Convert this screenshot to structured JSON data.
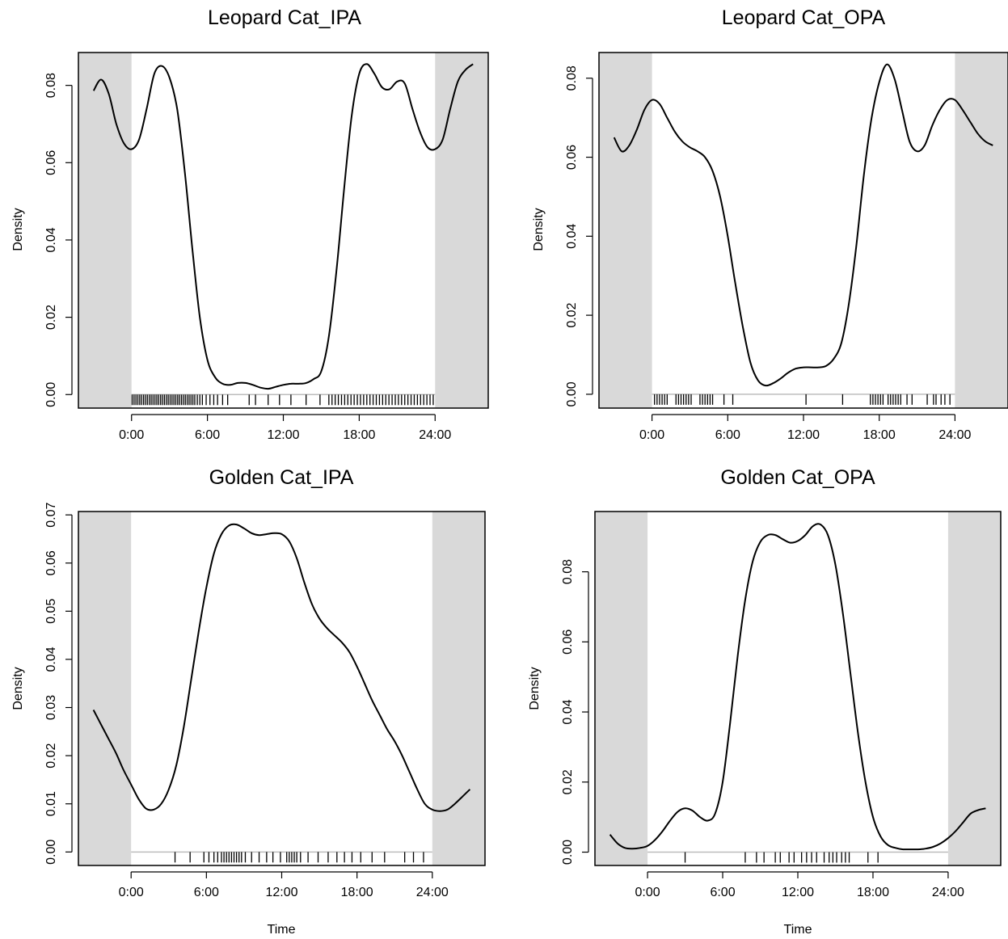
{
  "chart_data": [
    {
      "type": "line",
      "title": "Leopard Cat_IPA",
      "ylabel": "Density",
      "xlabel": "",
      "x_ticks": [
        "0:00",
        "6:00",
        "12:00",
        "18:00",
        "24:00"
      ],
      "y_ticks": [
        "0.00",
        "0.02",
        "0.04",
        "0.06",
        "0.08"
      ],
      "xlim": [
        -4.2,
        28.2
      ],
      "ylim": [
        -0.0035,
        0.0885
      ],
      "shaded_regions": [
        [
          -4.2,
          0
        ],
        [
          24,
          28.2
        ]
      ],
      "shade_color": "#d9d9d9",
      "line_color": "#000000",
      "series": [
        {
          "x": [
            -3,
            -2.4,
            -1.8,
            -1.2,
            -0.6,
            0,
            0.6,
            1.2,
            1.8,
            2.4,
            3.0,
            3.6,
            4.2,
            4.8,
            5.4,
            6.0,
            6.6,
            7.2,
            7.8,
            8.4,
            9.0,
            9.6,
            10.2,
            10.8,
            11.4,
            12.0,
            12.6,
            13.2,
            13.8,
            14.4,
            15.0,
            15.6,
            16.2,
            16.8,
            17.4,
            18.0,
            18.6,
            19.2,
            19.8,
            20.4,
            21.0,
            21.6,
            22.2,
            22.8,
            23.4,
            24.0,
            24.6,
            25.2,
            25.8,
            26.4,
            27.0
          ],
          "y": [
            0.0786,
            0.0815,
            0.0778,
            0.07,
            0.065,
            0.0635,
            0.066,
            0.074,
            0.083,
            0.085,
            0.082,
            0.074,
            0.058,
            0.038,
            0.02,
            0.009,
            0.0045,
            0.0028,
            0.0025,
            0.003,
            0.003,
            0.0025,
            0.0018,
            0.0015,
            0.002,
            0.0025,
            0.0028,
            0.0028,
            0.003,
            0.004,
            0.006,
            0.015,
            0.032,
            0.053,
            0.072,
            0.083,
            0.0855,
            0.083,
            0.0795,
            0.079,
            0.081,
            0.0805,
            0.074,
            0.068,
            0.064,
            0.0635,
            0.066,
            0.074,
            0.081,
            0.084,
            0.0855
          ]
        }
      ],
      "rug": [
        0.05,
        0.2,
        0.35,
        0.5,
        0.65,
        0.8,
        0.95,
        1.1,
        1.25,
        1.4,
        1.55,
        1.7,
        1.85,
        2.0,
        2.15,
        2.3,
        2.45,
        2.6,
        2.75,
        2.9,
        3.05,
        3.2,
        3.35,
        3.5,
        3.65,
        3.8,
        3.95,
        4.1,
        4.25,
        4.4,
        4.55,
        4.7,
        4.85,
        5.0,
        5.2,
        5.4,
        5.6,
        5.9,
        6.2,
        6.5,
        6.8,
        7.2,
        7.6,
        9.3,
        9.8,
        10.8,
        11.7,
        12.6,
        13.8,
        14.9,
        15.6,
        15.85,
        16.1,
        16.35,
        16.6,
        16.85,
        17.1,
        17.35,
        17.6,
        17.85,
        18.1,
        18.35,
        18.6,
        18.85,
        19.1,
        19.35,
        19.6,
        19.85,
        20.1,
        20.35,
        20.6,
        20.85,
        21.1,
        21.35,
        21.6,
        21.85,
        22.1,
        22.35,
        22.6,
        22.85,
        23.1,
        23.35,
        23.6,
        23.85
      ]
    },
    {
      "type": "line",
      "title": "Leopard Cat_OPA",
      "ylabel": "Density",
      "xlabel": "",
      "x_ticks": [
        "0:00",
        "6:00",
        "12:00",
        "18:00",
        "24:00"
      ],
      "y_ticks": [
        "0.00",
        "0.02",
        "0.04",
        "0.06",
        "0.08"
      ],
      "xlim": [
        -4.2,
        28.2
      ],
      "ylim": [
        -0.0035,
        0.0865
      ],
      "shaded_regions": [
        [
          -4.2,
          0
        ],
        [
          24,
          28.2
        ]
      ],
      "shade_color": "#d9d9d9",
      "line_color": "#000000",
      "series": [
        {
          "x": [
            -3,
            -2.4,
            -1.8,
            -1.2,
            -0.6,
            0,
            0.6,
            1.2,
            1.8,
            2.4,
            3.0,
            3.6,
            4.2,
            4.8,
            5.4,
            6.0,
            6.6,
            7.2,
            7.8,
            8.4,
            9.0,
            9.6,
            10.2,
            10.8,
            11.4,
            12.0,
            12.6,
            13.2,
            13.8,
            14.4,
            15.0,
            15.6,
            16.2,
            16.8,
            17.4,
            18.0,
            18.6,
            19.2,
            19.8,
            20.4,
            21.0,
            21.6,
            22.2,
            22.8,
            23.4,
            24.0,
            24.6,
            25.2,
            25.8,
            26.4,
            27.0
          ],
          "y": [
            0.065,
            0.0615,
            0.063,
            0.067,
            0.072,
            0.0745,
            0.0735,
            0.07,
            0.0665,
            0.064,
            0.0625,
            0.0615,
            0.06,
            0.0565,
            0.05,
            0.04,
            0.028,
            0.017,
            0.008,
            0.0035,
            0.0022,
            0.0028,
            0.004,
            0.0055,
            0.0065,
            0.0068,
            0.0068,
            0.0068,
            0.0072,
            0.009,
            0.013,
            0.023,
            0.038,
            0.056,
            0.07,
            0.079,
            0.0835,
            0.08,
            0.072,
            0.064,
            0.0615,
            0.063,
            0.068,
            0.072,
            0.0745,
            0.0745,
            0.072,
            0.069,
            0.066,
            0.064,
            0.063
          ]
        }
      ],
      "rug": [
        0.2,
        0.4,
        0.6,
        0.8,
        1.0,
        1.2,
        1.9,
        2.1,
        2.3,
        2.5,
        2.7,
        2.9,
        3.1,
        3.8,
        4.0,
        4.2,
        4.4,
        4.6,
        4.8,
        5.7,
        6.4,
        12.2,
        15.1,
        17.3,
        17.5,
        17.7,
        17.9,
        18.1,
        18.3,
        18.7,
        18.9,
        19.1,
        19.3,
        19.5,
        19.7,
        20.2,
        20.6,
        21.8,
        22.3,
        22.5,
        22.9,
        23.2,
        23.6
      ]
    },
    {
      "type": "line",
      "title": "Golden Cat_IPA",
      "ylabel": "Density",
      "xlabel": "Time",
      "x_ticks": [
        "0:00",
        "6:00",
        "12:00",
        "18:00",
        "24:00"
      ],
      "y_ticks": [
        "0.00",
        "0.01",
        "0.02",
        "0.03",
        "0.04",
        "0.05",
        "0.06",
        "0.07"
      ],
      "xlim": [
        -4.2,
        28.2
      ],
      "ylim": [
        -0.0028,
        0.0707
      ],
      "shaded_regions": [
        [
          -4.2,
          0
        ],
        [
          24,
          28.2
        ]
      ],
      "shade_color": "#d9d9d9",
      "line_color": "#000000",
      "series": [
        {
          "x": [
            -3,
            -2.4,
            -1.8,
            -1.2,
            -0.6,
            0,
            0.6,
            1.2,
            1.8,
            2.4,
            3.0,
            3.6,
            4.2,
            4.8,
            5.4,
            6.0,
            6.6,
            7.2,
            7.8,
            8.4,
            9.0,
            9.6,
            10.2,
            10.8,
            11.4,
            12.0,
            12.6,
            13.2,
            13.8,
            14.4,
            15.0,
            15.6,
            16.2,
            16.8,
            17.4,
            18.0,
            18.6,
            19.2,
            19.8,
            20.4,
            21.0,
            21.6,
            22.2,
            22.8,
            23.4,
            24.0,
            24.6,
            25.2,
            25.8,
            26.4,
            27.0
          ],
          "y": [
            0.0295,
            0.0265,
            0.0235,
            0.0205,
            0.017,
            0.014,
            0.011,
            0.009,
            0.0088,
            0.01,
            0.013,
            0.018,
            0.026,
            0.036,
            0.046,
            0.055,
            0.062,
            0.066,
            0.0678,
            0.068,
            0.0672,
            0.0662,
            0.0658,
            0.066,
            0.0662,
            0.066,
            0.0645,
            0.061,
            0.056,
            0.0515,
            0.0485,
            0.0465,
            0.045,
            0.0435,
            0.0415,
            0.0385,
            0.035,
            0.0315,
            0.0285,
            0.0255,
            0.023,
            0.02,
            0.0165,
            0.013,
            0.01,
            0.0088,
            0.0085,
            0.0088,
            0.01,
            0.0115,
            0.013
          ]
        }
      ],
      "rug": [
        3.5,
        4.7,
        5.8,
        6.2,
        6.6,
        6.9,
        7.2,
        7.4,
        7.6,
        7.8,
        8.0,
        8.2,
        8.4,
        8.6,
        8.8,
        9.1,
        9.6,
        10.2,
        10.8,
        11.3,
        11.9,
        12.4,
        12.6,
        12.8,
        13.0,
        13.2,
        13.5,
        14.1,
        14.9,
        15.7,
        16.4,
        17.0,
        17.6,
        18.3,
        19.2,
        20.2,
        21.8,
        22.5,
        23.3
      ]
    },
    {
      "type": "line",
      "title": "Golden Cat_OPA",
      "ylabel": "Density",
      "xlabel": "Time",
      "x_ticks": [
        "0:00",
        "6:00",
        "12:00",
        "18:00",
        "24:00"
      ],
      "y_ticks": [
        "0.00",
        "0.02",
        "0.04",
        "0.06",
        "0.08"
      ],
      "xlim": [
        -4.2,
        28.2
      ],
      "ylim": [
        -0.0038,
        0.0972
      ],
      "shaded_regions": [
        [
          -4.2,
          0
        ],
        [
          24,
          28.2
        ]
      ],
      "shade_color": "#d9d9d9",
      "line_color": "#000000",
      "series": [
        {
          "x": [
            -3,
            -2.4,
            -1.8,
            -1.2,
            -0.6,
            0,
            0.6,
            1.2,
            1.8,
            2.4,
            3.0,
            3.6,
            4.2,
            4.8,
            5.4,
            6.0,
            6.6,
            7.2,
            7.8,
            8.4,
            9.0,
            9.6,
            10.2,
            10.8,
            11.4,
            12.0,
            12.6,
            13.2,
            13.8,
            14.4,
            15.0,
            15.6,
            16.2,
            16.8,
            17.4,
            18.0,
            18.6,
            19.2,
            19.8,
            20.4,
            21.0,
            21.6,
            22.2,
            22.8,
            23.4,
            24.0,
            24.6,
            25.2,
            25.8,
            26.4,
            27.0
          ],
          "y": [
            0.005,
            0.0025,
            0.0012,
            0.001,
            0.0012,
            0.0018,
            0.0035,
            0.006,
            0.009,
            0.0115,
            0.0125,
            0.0118,
            0.01,
            0.009,
            0.011,
            0.02,
            0.037,
            0.056,
            0.072,
            0.083,
            0.0885,
            0.0905,
            0.0905,
            0.0893,
            0.0883,
            0.0888,
            0.0905,
            0.093,
            0.0935,
            0.0905,
            0.082,
            0.068,
            0.051,
            0.034,
            0.02,
            0.01,
            0.0045,
            0.002,
            0.0012,
            0.0008,
            0.0008,
            0.0008,
            0.001,
            0.0015,
            0.0025,
            0.004,
            0.006,
            0.0085,
            0.011,
            0.012,
            0.0125
          ]
        }
      ],
      "rug": [
        3.0,
        7.8,
        8.7,
        9.3,
        10.2,
        10.6,
        11.3,
        11.7,
        12.3,
        12.7,
        13.1,
        13.5,
        14.1,
        14.5,
        14.8,
        15.1,
        15.5,
        15.8,
        16.1,
        17.6,
        18.4
      ]
    }
  ]
}
